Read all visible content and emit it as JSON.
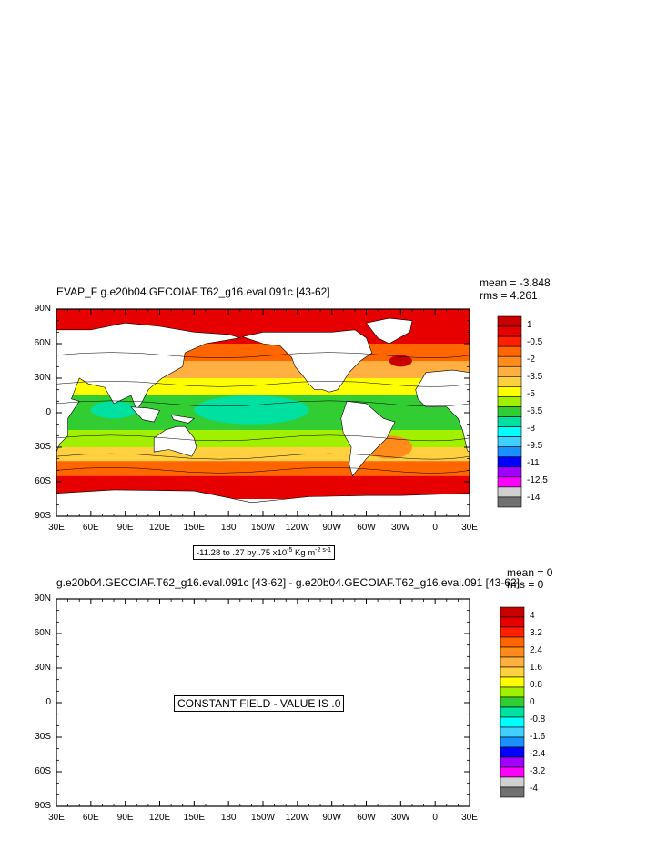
{
  "chart_data": [
    {
      "type": "heatmap",
      "title": "EVAP_F g.e20b04.GECOIAF.T62_g16.eval.091c [43-62]",
      "mean": "mean = -3.848",
      "rms": "rms = 4.261",
      "x_ticks": [
        "30E",
        "60E",
        "90E",
        "120E",
        "150E",
        "180",
        "150W",
        "120W",
        "90W",
        "60W",
        "30W",
        "0",
        "30E"
      ],
      "y_ticks": [
        "90N",
        "60N",
        "30N",
        "0",
        "30S",
        "60S",
        "90S"
      ],
      "xlim": [
        30,
        390
      ],
      "ylim": [
        -90,
        90
      ],
      "info_box": {
        "text": "-11.28 to .27 by .75 x10",
        "exp": "-5",
        "unit": " Kg m",
        "unit_exp": "-2 s-1"
      },
      "colorbar": {
        "labels": [
          "1",
          "-0.5",
          "-2",
          "-3.5",
          "-5",
          "-6.5",
          "-8",
          "-9.5",
          "-11",
          "-12.5",
          "-14"
        ],
        "colors": [
          "#c80000",
          "#e60000",
          "#ff2000",
          "#ff6600",
          "#ff8c1a",
          "#ffb040",
          "#ffd040",
          "#ffff00",
          "#a0f000",
          "#32cd32",
          "#00e0a0",
          "#00ffff",
          "#40d0ff",
          "#1890ff",
          "#0000ff",
          "#a000ff",
          "#ff00ff",
          "#d0d0d0",
          "#707070"
        ]
      }
    },
    {
      "type": "heatmap",
      "title": "g.e20b04.GECOIAF.T62_g16.eval.091c [43-62] - g.e20b04.GECOIAF.T62_g16.eval.091 [43-62]",
      "mean": "mean = 0",
      "rms": "rms = 0",
      "x_ticks": [
        "30E",
        "60E",
        "90E",
        "120E",
        "150E",
        "180",
        "150W",
        "120W",
        "90W",
        "60W",
        "30W",
        "0",
        "30E"
      ],
      "y_ticks": [
        "90N",
        "60N",
        "30N",
        "0",
        "30S",
        "60S",
        "90S"
      ],
      "xlim": [
        30,
        390
      ],
      "ylim": [
        -90,
        90
      ],
      "note": "CONSTANT FIELD - VALUE IS .0",
      "colorbar": {
        "labels": [
          "4",
          "3.2",
          "2.4",
          "1.6",
          "0.8",
          "0",
          "-0.8",
          "-1.6",
          "-2.4",
          "-3.2",
          "-4"
        ],
        "colors": [
          "#c80000",
          "#e60000",
          "#ff2000",
          "#ff6600",
          "#ff8c1a",
          "#ffb040",
          "#ffd040",
          "#ffff00",
          "#a0f000",
          "#32cd32",
          "#00e0a0",
          "#00ffff",
          "#40d0ff",
          "#1890ff",
          "#0000ff",
          "#a000ff",
          "#ff00ff",
          "#d0d0d0",
          "#707070"
        ]
      }
    }
  ]
}
